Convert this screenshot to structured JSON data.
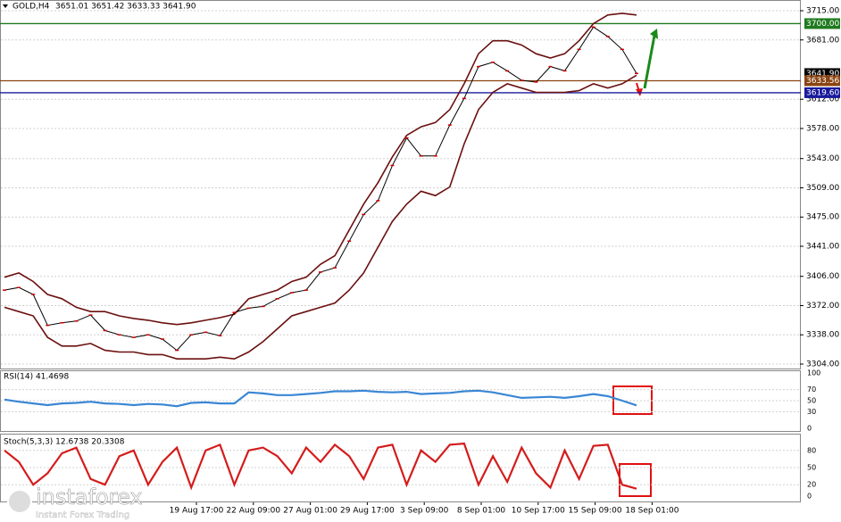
{
  "header": {
    "symbol": "GOLD,H4",
    "ohlc": "3651.01 3651.42 3633.33 3641.90"
  },
  "price_axis": {
    "lim": [
      3304,
      3715
    ],
    "ticks": [
      {
        "value": 3715,
        "label": "3715.00"
      },
      {
        "value": 3681,
        "label": "3681.00"
      },
      {
        "value": 3612,
        "label": "3612.00"
      },
      {
        "value": 3578,
        "label": "3578.00"
      },
      {
        "value": 3543,
        "label": "3543.00"
      },
      {
        "value": 3509,
        "label": "3509.00"
      },
      {
        "value": 3475,
        "label": "3475.00"
      },
      {
        "value": 3441,
        "label": "3441.00"
      },
      {
        "value": 3406,
        "label": "3406.00"
      },
      {
        "value": 3372,
        "label": "3372.00"
      },
      {
        "value": 3338,
        "label": "3338.00"
      },
      {
        "value": 3304,
        "label": "3304.00"
      }
    ]
  },
  "levels": [
    {
      "value": 3700,
      "label": "3700.00",
      "color": "#1f7a1f"
    },
    {
      "value": 3641.9,
      "label": "3641.90",
      "color": "#000000"
    },
    {
      "value": 3633.56,
      "label": "3633.56",
      "color": "#8b4513"
    },
    {
      "value": 3619.6,
      "label": "3619.60",
      "color": "#1a1a9c"
    }
  ],
  "price": {
    "close": [
      3390,
      3393,
      3385,
      3349,
      3352,
      3354,
      3361,
      3343,
      3338,
      3335,
      3338,
      3333,
      3320,
      3338,
      3341,
      3337,
      3364,
      3369,
      3371,
      3380,
      3387,
      3390,
      3411,
      3416,
      3447,
      3478,
      3494,
      3535,
      3567,
      3546,
      3546,
      3582,
      3613,
      3650,
      3655,
      3645,
      3634,
      3632,
      3650,
      3645,
      3670,
      3696,
      3685,
      3670,
      3642
    ],
    "upper": [
      3405,
      3410,
      3400,
      3385,
      3380,
      3370,
      3365,
      3365,
      3360,
      3357,
      3355,
      3352,
      3350,
      3352,
      3355,
      3358,
      3362,
      3380,
      3385,
      3390,
      3400,
      3405,
      3420,
      3430,
      3460,
      3490,
      3515,
      3545,
      3570,
      3580,
      3585,
      3600,
      3630,
      3665,
      3680,
      3680,
      3675,
      3665,
      3660,
      3665,
      3680,
      3700,
      3710,
      3712,
      3710
    ],
    "lower": [
      3370,
      3365,
      3360,
      3335,
      3325,
      3325,
      3328,
      3320,
      3318,
      3318,
      3315,
      3315,
      3310,
      3310,
      3310,
      3312,
      3310,
      3318,
      3330,
      3345,
      3360,
      3365,
      3370,
      3375,
      3390,
      3410,
      3440,
      3470,
      3490,
      3505,
      3500,
      3510,
      3560,
      3600,
      3620,
      3630,
      3625,
      3620,
      3620,
      3620,
      3622,
      3630,
      3625,
      3630,
      3640
    ]
  },
  "rsi": {
    "label": "RSI(14) 41.4698",
    "ticks": [
      100,
      70,
      50,
      30,
      0
    ],
    "values": [
      52,
      48,
      45,
      42,
      45,
      46,
      48,
      45,
      44,
      42,
      44,
      43,
      40,
      46,
      47,
      45,
      45,
      65,
      63,
      60,
      60,
      62,
      64,
      67,
      67,
      68,
      66,
      65,
      66,
      62,
      63,
      64,
      67,
      68,
      65,
      60,
      55,
      56,
      57,
      55,
      58,
      62,
      58,
      50,
      41.5
    ]
  },
  "stoch": {
    "label": "Stoch(5,3,3) 12.6738 20.3308",
    "ticks": [
      80,
      50,
      20,
      0
    ],
    "values": [
      80,
      60,
      20,
      40,
      75,
      85,
      30,
      20,
      70,
      80,
      20,
      60,
      85,
      15,
      80,
      90,
      20,
      80,
      85,
      70,
      40,
      85,
      60,
      90,
      70,
      30,
      85,
      90,
      20,
      80,
      60,
      90,
      92,
      20,
      70,
      25,
      85,
      40,
      15,
      80,
      30,
      88,
      90,
      20,
      13
    ]
  },
  "time_labels": [
    "19 Aug 17:00",
    "22 Aug 09:00",
    "27 Aug 01:00",
    "29 Aug 17:00",
    "3 Sep 09:00",
    "8 Sep 01:00",
    "10 Sep 17:00",
    "15 Sep 09:00",
    "18 Sep 01:00"
  ],
  "logo": {
    "name": "instaforex",
    "tagline": "Instant Forex Trading"
  }
}
